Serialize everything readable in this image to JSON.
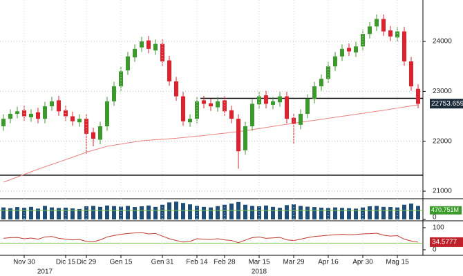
{
  "chart_data": {
    "type": "candlestick",
    "categories": [
      null,
      null,
      null,
      "Nov 30",
      null,
      null,
      null,
      null,
      null,
      "Dic 15",
      null,
      null,
      "Dic 29",
      null,
      null,
      null,
      null,
      "Gen 15",
      null,
      null,
      null,
      null,
      null,
      "Gen 31",
      null,
      null,
      null,
      null,
      "Feb 14",
      null,
      null,
      null,
      "Feb 28",
      null,
      null,
      null,
      null,
      "Mar 15",
      null,
      null,
      null,
      null,
      "Mar 29",
      null,
      null,
      null,
      null,
      "Apr 16",
      null,
      null,
      null,
      null,
      "Apr 30",
      null,
      null,
      null,
      null,
      "Mag 15",
      null,
      null,
      null
    ],
    "years": [
      "2017",
      "2018"
    ],
    "open": [
      22300,
      22450,
      22550,
      22620,
      22480,
      22580,
      22450,
      22700,
      22820,
      22620,
      22500,
      22380,
      22450,
      22180,
      22030,
      22300,
      22800,
      23100,
      23420,
      23680,
      23880,
      24020,
      23820,
      23950,
      23620,
      23200,
      22900,
      22380,
      22450,
      22820,
      22760,
      22680,
      22820,
      22620,
      22450,
      21820,
      22300,
      22740,
      22920,
      22730,
      22780,
      22900,
      22470,
      22330,
      22550,
      22850,
      23100,
      23250,
      23500,
      23700,
      23870,
      23780,
      23900,
      24150,
      24300,
      24450,
      24220,
      24080,
      24200,
      23600,
      23050
    ],
    "high": [
      22540,
      22640,
      22690,
      22710,
      22640,
      22670,
      22790,
      22890,
      22910,
      22710,
      22590,
      22540,
      22540,
      22270,
      22390,
      22890,
      23190,
      23490,
      23790,
      23940,
      24090,
      24110,
      24040,
      24040,
      23710,
      23290,
      22990,
      22540,
      22890,
      22910,
      22850,
      22890,
      22910,
      22710,
      22540,
      22390,
      22840,
      22990,
      23010,
      22890,
      22990,
      22990,
      22560,
      22640,
      22940,
      23190,
      23340,
      23590,
      23790,
      23940,
      23960,
      23990,
      24240,
      24390,
      24540,
      24540,
      24310,
      24290,
      24290,
      23690,
      23140
    ],
    "low": [
      22210,
      22360,
      22460,
      22410,
      22390,
      22360,
      22360,
      22610,
      22510,
      22410,
      22310,
      22290,
      21750,
      21900,
      21940,
      22210,
      22710,
      23010,
      23330,
      23590,
      23790,
      23760,
      23730,
      23510,
      23110,
      22810,
      22310,
      22290,
      22360,
      22660,
      22610,
      22590,
      22510,
      22360,
      21450,
      21730,
      22210,
      22650,
      22660,
      22640,
      22690,
      22360,
      21950,
      22240,
      22460,
      22760,
      23010,
      23160,
      23410,
      23610,
      23710,
      23690,
      23810,
      24060,
      24210,
      24110,
      24010,
      23990,
      23510,
      23010,
      22660
    ],
    "close": [
      22450,
      22550,
      22600,
      22500,
      22550,
      22450,
      22700,
      22800,
      22600,
      22500,
      22400,
      22450,
      22150,
      22050,
      22300,
      22800,
      23100,
      23400,
      23700,
      23850,
      24000,
      23850,
      23950,
      23600,
      23200,
      22900,
      22400,
      22450,
      22800,
      22750,
      22700,
      22800,
      22600,
      22450,
      21800,
      22300,
      22750,
      22900,
      22750,
      22800,
      22900,
      22450,
      22350,
      22550,
      22850,
      23100,
      23250,
      23500,
      23700,
      23850,
      23800,
      23900,
      24150,
      24300,
      24450,
      24200,
      24100,
      24200,
      23600,
      23100,
      22750
    ],
    "up_color": "#3a9a2a",
    "down_color": "#e0202a",
    "series": [
      {
        "color": "#f08080",
        "values": [
          21180,
          21232,
          21284,
          21336,
          21388,
          21440,
          21488,
          21536,
          21584,
          21632,
          21680,
          21730,
          21780,
          21820,
          21860,
          21900,
          21922,
          21944,
          21966,
          21988,
          22010,
          22020,
          22030,
          22040,
          22050,
          22060,
          22074,
          22088,
          22102,
          22116,
          22130,
          22146,
          22162,
          22178,
          22194,
          22210,
          22232,
          22254,
          22276,
          22298,
          22320,
          22340,
          22360,
          22380,
          22400,
          22420,
          22440,
          22460,
          22480,
          22500,
          22520,
          22540,
          22560,
          22580,
          22600,
          22620,
          22642,
          22664,
          22686,
          22708,
          22730
        ]
      }
    ],
    "levels": [
      22860,
      21320
    ],
    "last_price": 22753.6594,
    "ylim": [
      20890,
      24830
    ],
    "yticks": [
      21000,
      22000,
      23000,
      24000
    ],
    "grid": true,
    "volume": {
      "color": "#1f4e79",
      "values": [
        620,
        580,
        640,
        600,
        650,
        560,
        700,
        620,
        590,
        610,
        570,
        540,
        680,
        700,
        650,
        720,
        690,
        660,
        700,
        640,
        680,
        720,
        650,
        760,
        880,
        920,
        850,
        780,
        700,
        650,
        620,
        690,
        760,
        820,
        900,
        760,
        700,
        680,
        720,
        650,
        600,
        740,
        780,
        700,
        660,
        640,
        610,
        590,
        620,
        600,
        580,
        560,
        620,
        680,
        700,
        650,
        640,
        620,
        760,
        820,
        700
      ],
      "level": {
        "value": 470.751,
        "label": "470.751M"
      },
      "ylim": [
        0,
        1000
      ],
      "yticks": [
        0
      ]
    },
    "rsi": {
      "color": "#c0392b",
      "values": [
        52,
        55,
        56,
        50,
        53,
        48,
        58,
        60,
        52,
        48,
        45,
        47,
        38,
        36,
        45,
        58,
        65,
        70,
        74,
        76,
        78,
        72,
        74,
        62,
        50,
        42,
        35,
        38,
        50,
        48,
        47,
        50,
        45,
        42,
        32,
        44,
        55,
        58,
        52,
        54,
        56,
        45,
        42,
        48,
        55,
        60,
        63,
        66,
        68,
        70,
        68,
        69,
        72,
        73,
        75,
        66,
        62,
        64,
        48,
        40,
        34.5777
      ],
      "level": 30,
      "ylim": [
        -12.5,
        125
      ],
      "yticks": [
        0,
        100
      ]
    }
  }
}
